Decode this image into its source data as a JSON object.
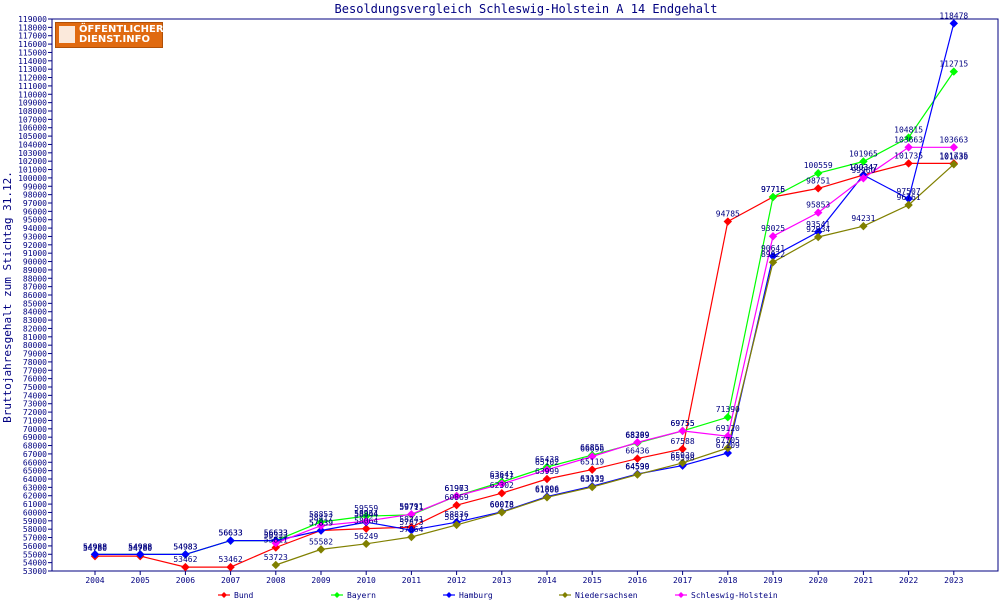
{
  "logo": {
    "line1": "ÖFFENTLICHER",
    "line2": "DIENST.INFO"
  },
  "chart_data": {
    "type": "line",
    "title": "Besoldungsvergleich Schleswig-Holstein A 14 Endgehalt",
    "xlabel": "",
    "ylabel": "Bruttojahresgehalt zum Stichtag 31.12.",
    "categories": [
      "2004",
      "2005",
      "2006",
      "2007",
      "2008",
      "2009",
      "2010",
      "2011",
      "2012",
      "2013",
      "2014",
      "2015",
      "2016",
      "2017",
      "2018",
      "2019",
      "2020",
      "2021",
      "2022",
      "2023"
    ],
    "ylim": [
      53000,
      119000
    ],
    "ytick_step": 1000,
    "grid": false,
    "legend_position": "bottom",
    "series": [
      {
        "name": "Bund",
        "color": "#ff0000",
        "values": [
          54780,
          54780,
          53462,
          53462,
          55811,
          57839,
          58064,
          58241,
          60869,
          62302,
          63999,
          65119,
          66436,
          67588,
          94785,
          97715,
          98751,
          100347,
          101735,
          101735
        ],
        "labels": [
          "54780",
          "54780",
          "53462",
          "53462",
          "55811",
          "57839",
          "58064",
          "58241",
          "60869",
          "62302",
          "63999",
          "65119",
          "66436",
          "67588",
          "94785",
          "97715",
          "98751",
          "100347",
          "101735",
          "101735"
        ]
      },
      {
        "name": "Bayern",
        "color": "#00ff00",
        "values": [
          54988,
          54988,
          54983,
          56633,
          56633,
          58853,
          59559,
          59711,
          61973,
          63641,
          65438,
          66855,
          68299,
          69755,
          71390,
          97716,
          100559,
          101965,
          104815,
          112715
        ],
        "labels": [
          "54988",
          "54988",
          "54983",
          "56633",
          "56633",
          "58853",
          "59559",
          "59711",
          "61973",
          "63641",
          "65438",
          "66855",
          "68299",
          "69755",
          "71390",
          "97716",
          "100559",
          "101965",
          "104815",
          "112715"
        ]
      },
      {
        "name": "Hamburg",
        "color": "#0000ff",
        "values": [
          54988,
          54988,
          54983,
          56633,
          56633,
          57839,
          58844,
          57873,
          58836,
          60078,
          61896,
          63139,
          64599,
          65598,
          67109,
          90641,
          93541,
          100347,
          97507,
          118478
        ],
        "labels": [
          "54988",
          "54988",
          "54983",
          "56633",
          "56633",
          "57839",
          "58844",
          "57873",
          "58836",
          "60078",
          "61896",
          "63139",
          "64599",
          "65598",
          "67109",
          "90641",
          "93541",
          "100347",
          "97507",
          "118478"
        ]
      },
      {
        "name": "Niedersachsen",
        "color": "#808000",
        "values": [
          null,
          null,
          null,
          null,
          53723,
          55582,
          56249,
          57064,
          58517,
          60018,
          61808,
          63033,
          64530,
          65930,
          67705,
          89922,
          92934,
          94231,
          96761,
          101630
        ],
        "labels": [
          "",
          "",
          "",
          "",
          "53723",
          "55582",
          "56249",
          "57064",
          "58517",
          "60018",
          "61808",
          "63033",
          "64530",
          "65930",
          "67705",
          "89922",
          "92934",
          "94231",
          "96761",
          "101630"
        ]
      },
      {
        "name": "Schleswig-Holstein",
        "color": "#ff00ff",
        "values": [
          null,
          null,
          null,
          null,
          56333,
          58417,
          58964,
          59791,
          61963,
          63417,
          65102,
          66696,
          68389,
          69755,
          69120,
          93025,
          95853,
          99960,
          103663,
          103663
        ],
        "labels": [
          "",
          "",
          "",
          "",
          "56333",
          "58417",
          "58964",
          "59791",
          "61963",
          "63417",
          "65102",
          "66696",
          "68389",
          "69755",
          "69120",
          "93025",
          "95853",
          "99960",
          "103663",
          "103663"
        ]
      }
    ]
  }
}
